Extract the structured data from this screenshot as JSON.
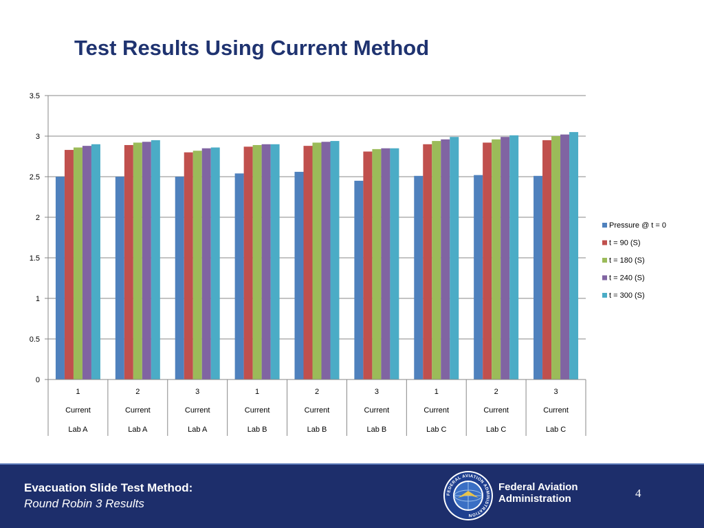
{
  "slide": {
    "title": "Test Results Using Current Method"
  },
  "chart_data": {
    "type": "bar",
    "title": "",
    "xlabel": "",
    "ylabel": "",
    "ylim": [
      0,
      3.5
    ],
    "yticks": [
      "0",
      "0.5",
      "1",
      "1.5",
      "2",
      "2.5",
      "3",
      "3.5"
    ],
    "grid": true,
    "legend_position": "right",
    "category_levels": [
      [
        "1",
        "2",
        "3",
        "1",
        "2",
        "3",
        "1",
        "2",
        "3"
      ],
      [
        "Current",
        "Current",
        "Current",
        "Current",
        "Current",
        "Current",
        "Current",
        "Current",
        "Current"
      ],
      [
        "Lab A",
        "Lab A",
        "Lab A",
        "Lab B",
        "Lab B",
        "Lab B",
        "Lab C",
        "Lab C",
        "Lab C"
      ]
    ],
    "series": [
      {
        "name": "Pressure @ t = 0",
        "color": "#4f81bd",
        "values": [
          2.5,
          2.5,
          2.5,
          2.54,
          2.56,
          2.45,
          2.51,
          2.52,
          2.51
        ]
      },
      {
        "name": "t = 90 (S)",
        "color": "#c0504d",
        "values": [
          2.83,
          2.89,
          2.8,
          2.87,
          2.88,
          2.81,
          2.9,
          2.92,
          2.95
        ]
      },
      {
        "name": "t = 180 (S)",
        "color": "#9bbb59",
        "values": [
          2.86,
          2.92,
          2.82,
          2.89,
          2.92,
          2.84,
          2.94,
          2.96,
          3.0
        ]
      },
      {
        "name": "t = 240 (S)",
        "color": "#8064a2",
        "values": [
          2.88,
          2.93,
          2.85,
          2.9,
          2.93,
          2.85,
          2.96,
          2.99,
          3.02
        ]
      },
      {
        "name": "t = 300 (S)",
        "color": "#4bacc6",
        "values": [
          2.9,
          2.95,
          2.86,
          2.9,
          2.94,
          2.85,
          2.99,
          3.01,
          3.05
        ]
      }
    ]
  },
  "footer": {
    "title": "Evacuation Slide Test Method:",
    "subtitle": "Round Robin 3 Results",
    "agency_line1": "Federal Aviation",
    "agency_line2": "Administration",
    "seal_text": "FEDERAL AVIATION ADMINISTRATION",
    "page_number": "4"
  }
}
